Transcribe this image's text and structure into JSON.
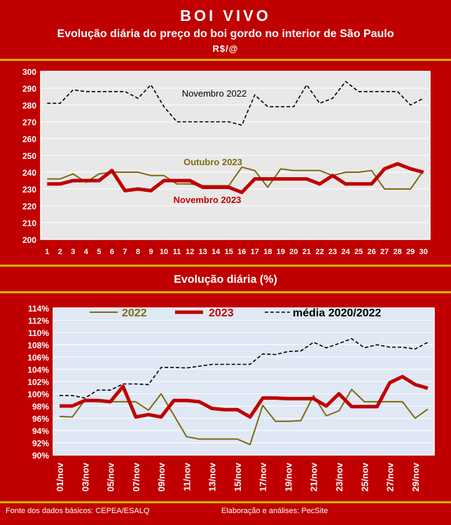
{
  "header": {
    "title": "BOI VIVO",
    "subtitle": "Evolução diária do preço do boi gordo no interior de São Paulo",
    "unit": "R$/@"
  },
  "section2_title": "Evolução diária (%)",
  "footer": {
    "source": "Fonte dos dados básicos: CEPEA/ESALQ",
    "credit": "Elaboração e análises: PecSite"
  },
  "colors": {
    "background": "#c00000",
    "gold": "#d4b000",
    "plot_bg": "#e8e8e8",
    "plot_bg2": "#dfe8f4",
    "series_2022": "#7f6a14",
    "series_2023": "#c00000",
    "series_black": "#000000"
  },
  "chart_data": [
    {
      "type": "line",
      "ylim": [
        200,
        300
      ],
      "yticks": [
        200,
        210,
        220,
        230,
        240,
        250,
        260,
        270,
        280,
        290,
        300
      ],
      "x": [
        "1",
        "2",
        "3",
        "4",
        "5",
        "6",
        "7",
        "8",
        "9",
        "10",
        "11",
        "12",
        "13",
        "14",
        "15",
        "16",
        "17",
        "18",
        "19",
        "20",
        "21",
        "22",
        "23",
        "24",
        "25",
        "26",
        "27",
        "28",
        "29",
        "30"
      ],
      "series": [
        {
          "name": "Novembro 2022",
          "style": "dashed",
          "color": "#000000",
          "values": [
            281,
            281,
            289,
            288,
            288,
            288,
            288,
            284,
            292,
            279,
            270,
            270,
            270,
            270,
            270,
            268,
            286,
            279,
            279,
            279,
            292,
            281,
            284,
            294,
            288,
            288,
            288,
            288,
            280,
            284
          ]
        },
        {
          "name": "Outubro 2023",
          "style": "solid",
          "color": "#7f6a14",
          "values": [
            236,
            236,
            239,
            234,
            239,
            240,
            240,
            240,
            238,
            238,
            233,
            233,
            232,
            232,
            232,
            243,
            241,
            231,
            242,
            241,
            241,
            241,
            238,
            240,
            240,
            241,
            230,
            230,
            230,
            241
          ]
        },
        {
          "name": "Novembro 2023",
          "style": "thick",
          "color": "#c00000",
          "values": [
            233,
            233,
            235,
            235,
            235,
            241,
            229,
            230,
            229,
            235,
            235,
            235,
            231,
            231,
            231,
            228,
            236,
            236,
            236,
            236,
            236,
            233,
            238,
            233,
            233,
            233,
            242,
            245,
            242,
            240
          ]
        }
      ]
    },
    {
      "type": "line",
      "ylim": [
        90,
        114
      ],
      "yticks": [
        "90%",
        "92%",
        "94%",
        "96%",
        "98%",
        "100%",
        "102%",
        "104%",
        "106%",
        "108%",
        "110%",
        "112%",
        "114%"
      ],
      "x": [
        "01/nov",
        "02/nov",
        "03/nov",
        "04/nov",
        "05/nov",
        "06/nov",
        "07/nov",
        "08/nov",
        "09/nov",
        "10/nov",
        "11/nov",
        "12/nov",
        "13/nov",
        "14/nov",
        "15/nov",
        "16/nov",
        "17/nov",
        "18/nov",
        "19/nov",
        "20/nov",
        "21/nov",
        "22/nov",
        "23/nov",
        "24/nov",
        "25/nov",
        "26/nov",
        "27/nov",
        "28/nov",
        "29/nov",
        "30/nov"
      ],
      "xticks": [
        "01/nov",
        "03/nov",
        "05/nov",
        "07/nov",
        "09/nov",
        "11/nov",
        "13/nov",
        "15/nov",
        "17/nov",
        "19/nov",
        "21/nov",
        "23/nov",
        "25/nov",
        "27/nov",
        "29/nov"
      ],
      "series": [
        {
          "name": "2022",
          "style": "solid",
          "color": "#7f6a14",
          "values": [
            96.3,
            96.2,
            99.0,
            98.7,
            98.7,
            98.7,
            98.7,
            97.3,
            100.0,
            96.5,
            93.0,
            92.6,
            92.6,
            92.6,
            92.6,
            91.7,
            98.1,
            95.5,
            95.5,
            95.6,
            99.7,
            96.4,
            97.2,
            100.7,
            98.7,
            98.7,
            98.7,
            98.7,
            96.0,
            97.5
          ]
        },
        {
          "name": "2023",
          "style": "thick",
          "color": "#c00000",
          "values": [
            98.0,
            98.0,
            98.9,
            98.9,
            98.7,
            101.2,
            96.2,
            96.6,
            96.2,
            98.9,
            98.9,
            98.7,
            97.6,
            97.4,
            97.4,
            96.2,
            99.3,
            99.3,
            99.2,
            99.2,
            99.2,
            98.0,
            100.0,
            97.9,
            97.9,
            97.9,
            101.8,
            102.8,
            101.5,
            100.9
          ]
        },
        {
          "name": "média 2020/2022",
          "style": "dashed",
          "color": "#000000",
          "values": [
            99.7,
            99.7,
            99.3,
            100.6,
            100.6,
            101.6,
            101.6,
            101.5,
            104.3,
            104.3,
            104.2,
            104.5,
            104.8,
            104.8,
            104.8,
            104.8,
            106.5,
            106.4,
            106.9,
            107.0,
            108.4,
            107.5,
            108.2,
            109.0,
            107.5,
            108.0,
            107.6,
            107.6,
            107.3,
            108.4
          ]
        }
      ]
    }
  ]
}
